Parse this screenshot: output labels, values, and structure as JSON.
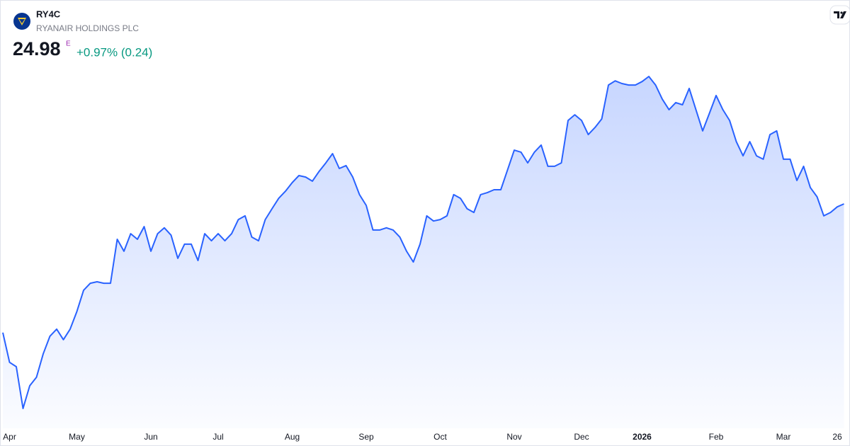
{
  "header": {
    "symbol": "RY4C",
    "name": "RYANAIR HOLDINGS PLC",
    "price": "24.98",
    "price_flag": "E",
    "change": "+0.97% (0.24)"
  },
  "chart_data": {
    "type": "line",
    "categories": [
      null,
      "Apr",
      null,
      null,
      null,
      null,
      null,
      null,
      null,
      null,
      null,
      "May",
      null,
      null,
      null,
      null,
      null,
      null,
      null,
      null,
      null,
      null,
      "Jun",
      null,
      null,
      null,
      null,
      null,
      null,
      null,
      null,
      null,
      "Jul",
      null,
      null,
      null,
      null,
      null,
      null,
      null,
      null,
      null,
      null,
      "Aug",
      null,
      null,
      null,
      null,
      null,
      null,
      null,
      null,
      null,
      null,
      "Sep",
      null,
      null,
      null,
      null,
      null,
      null,
      null,
      null,
      null,
      null,
      "Oct",
      null,
      null,
      null,
      null,
      null,
      null,
      null,
      null,
      null,
      null,
      "Nov",
      null,
      null,
      null,
      null,
      null,
      null,
      null,
      null,
      null,
      "Dec",
      null,
      null,
      null,
      null,
      null,
      null,
      null,
      null,
      "2026",
      null,
      null,
      null,
      null,
      null,
      null,
      null,
      null,
      null,
      null,
      "Feb",
      null,
      null,
      null,
      null,
      null,
      null,
      null,
      null,
      null,
      "Mar",
      null,
      null,
      null,
      null,
      null,
      null,
      null,
      "26",
      null
    ],
    "series": [
      {
        "color": "#2962ff",
        "values": [
          19.71,
          18.49,
          18.31,
          16.6,
          17.53,
          17.88,
          18.84,
          19.56,
          19.85,
          19.42,
          19.85,
          20.57,
          21.44,
          21.73,
          21.79,
          21.73,
          21.73,
          23.53,
          23.04,
          23.76,
          23.53,
          24.05,
          23.04,
          23.76,
          24.0,
          23.7,
          22.75,
          23.33,
          23.33,
          22.66,
          23.76,
          23.47,
          23.76,
          23.47,
          23.76,
          24.34,
          24.49,
          23.62,
          23.47,
          24.34,
          24.78,
          25.21,
          25.5,
          25.85,
          26.14,
          26.08,
          25.91,
          26.31,
          26.66,
          27.04,
          26.43,
          26.55,
          26.08,
          25.36,
          24.92,
          23.91,
          23.91,
          24.0,
          23.91,
          23.62,
          23.04,
          22.6,
          23.33,
          24.49,
          24.28,
          24.34,
          24.49,
          25.36,
          25.21,
          24.78,
          24.63,
          25.36,
          25.44,
          25.56,
          25.56,
          26.37,
          27.18,
          27.1,
          26.66,
          27.1,
          27.39,
          26.52,
          26.52,
          26.66,
          28.4,
          28.63,
          28.4,
          27.82,
          28.11,
          28.46,
          29.85,
          30.02,
          29.91,
          29.85,
          29.85,
          29.99,
          30.2,
          29.85,
          29.27,
          28.84,
          29.13,
          29.04,
          29.71,
          28.84,
          27.97,
          28.69,
          29.42,
          28.84,
          28.4,
          27.53,
          26.95,
          27.53,
          26.95,
          26.81,
          27.82,
          27.97,
          26.81,
          26.81,
          25.94,
          26.52,
          25.65,
          25.27,
          24.49,
          24.63,
          24.86,
          24.98
        ]
      }
    ]
  }
}
